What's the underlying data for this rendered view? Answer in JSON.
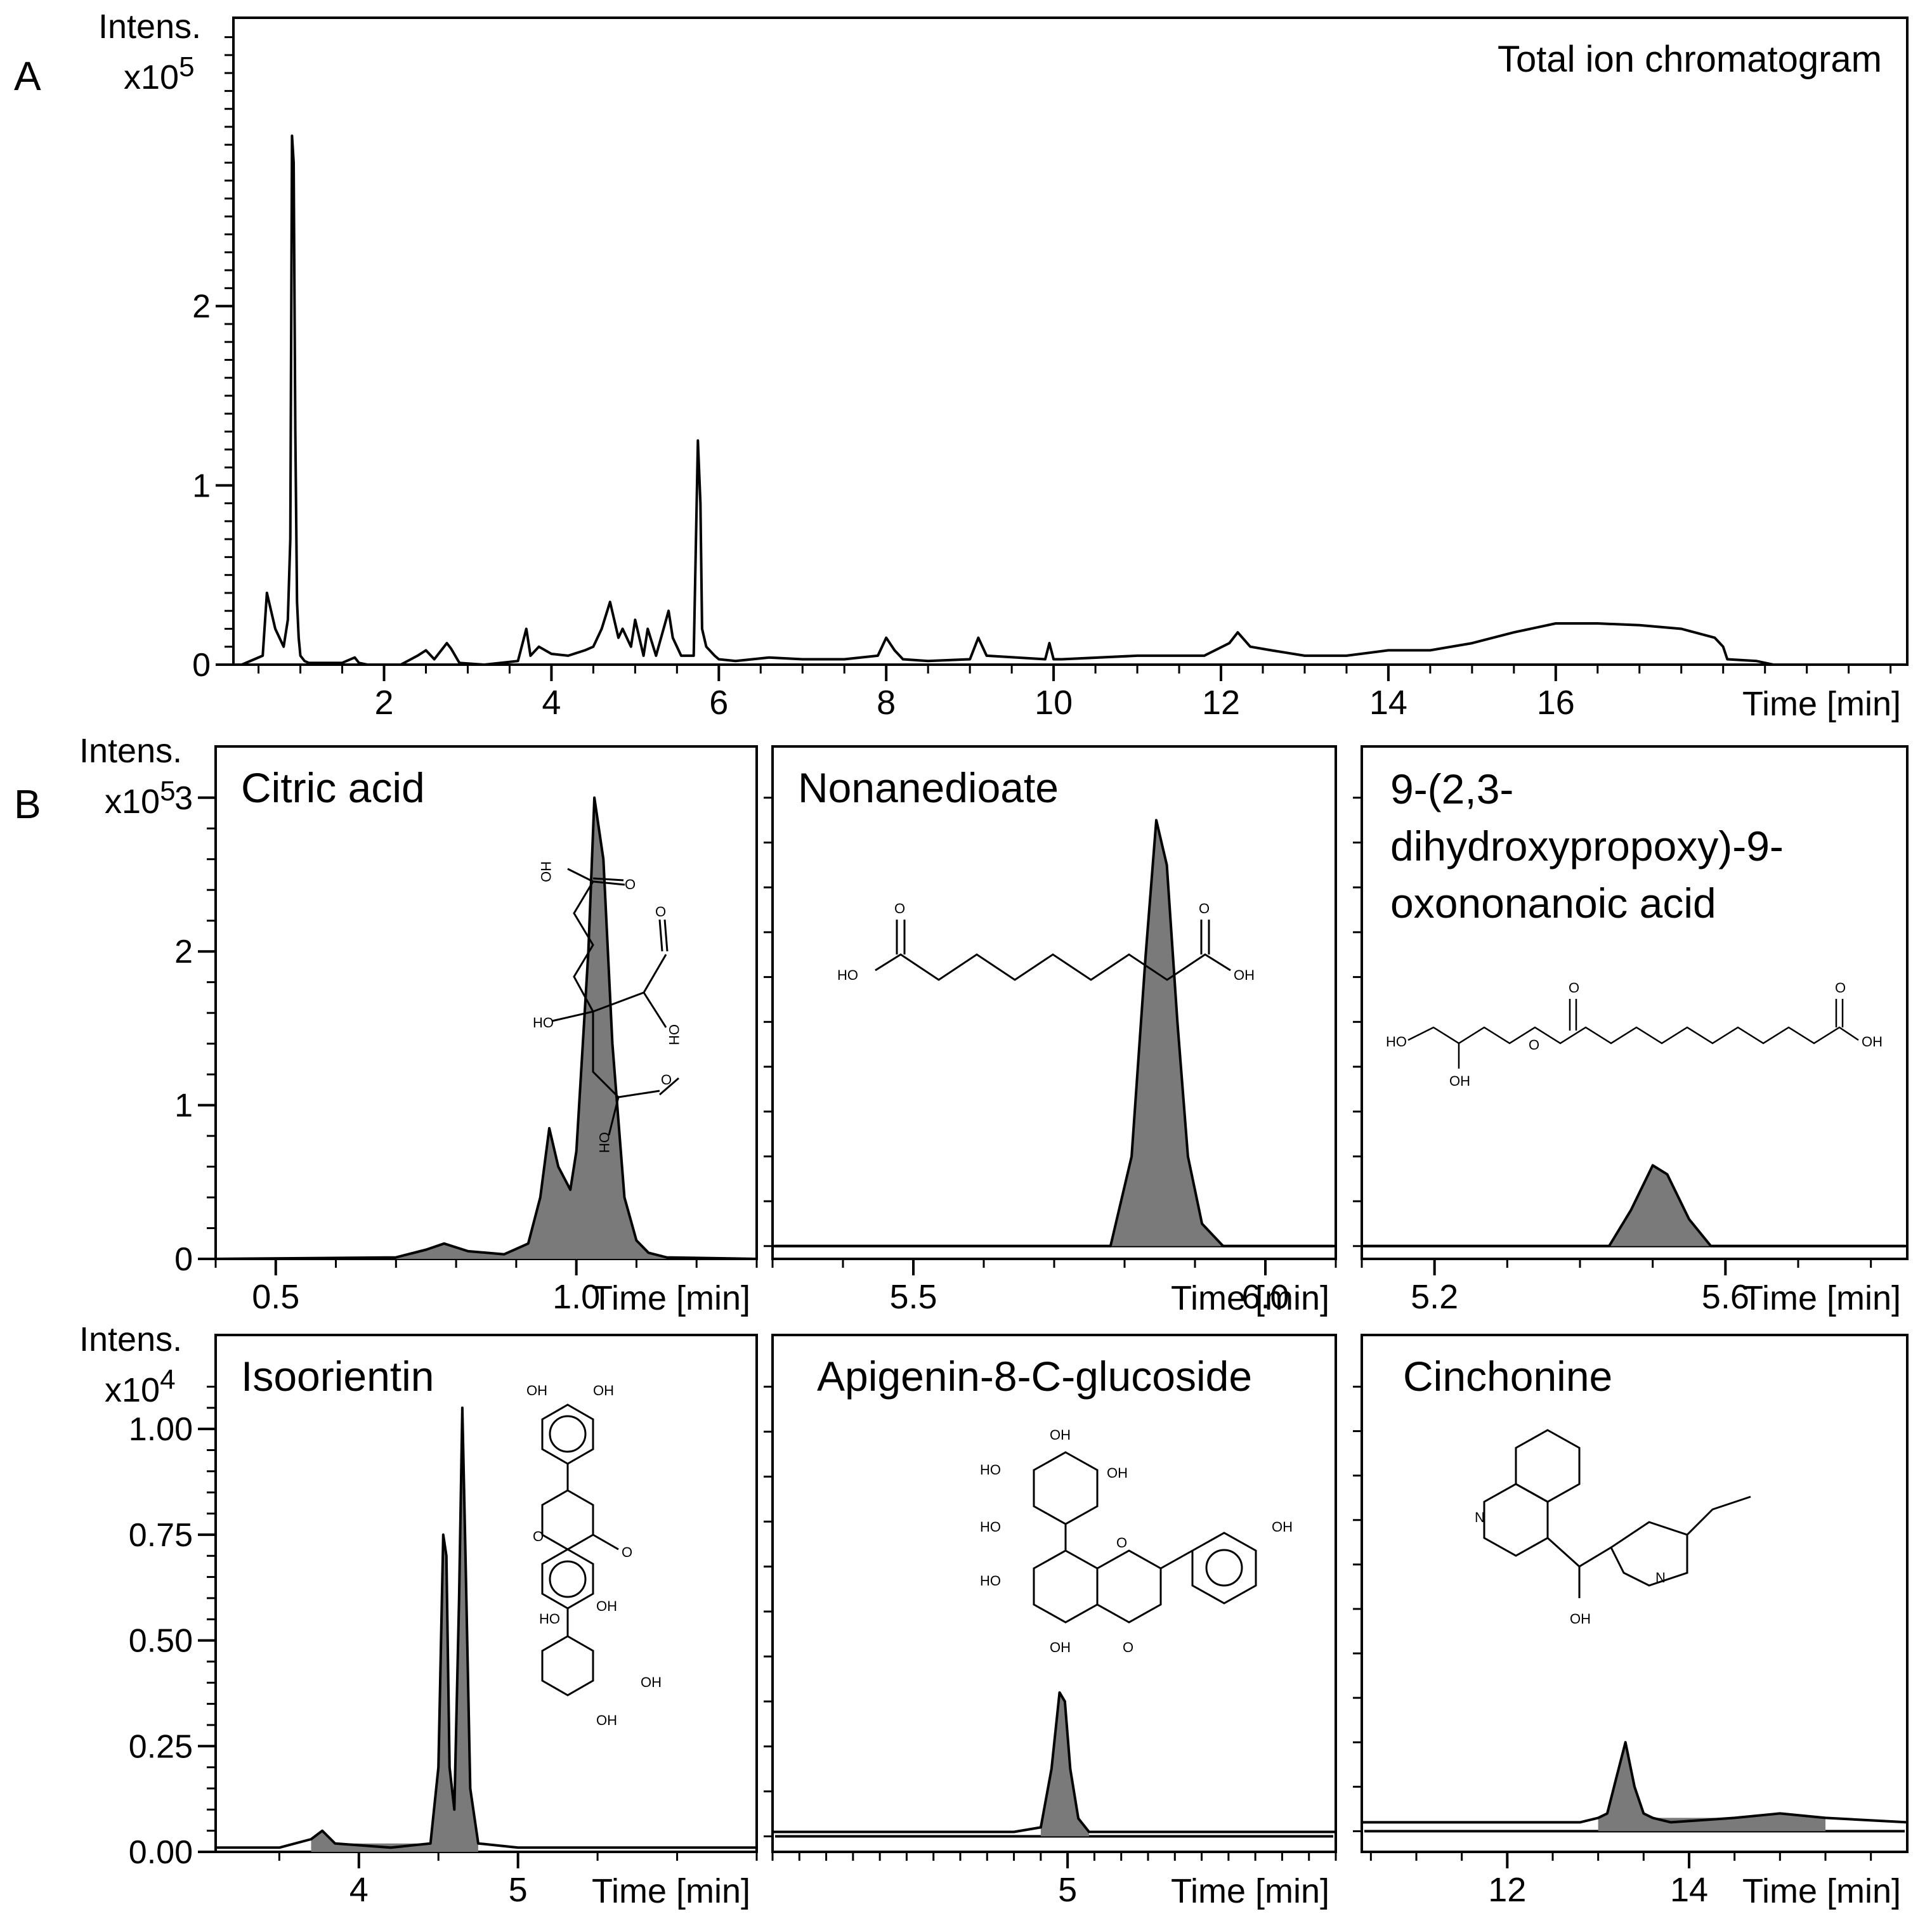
{
  "panel_labels": [
    "A",
    "B"
  ],
  "chart_data": [
    {
      "id": "A",
      "type": "line",
      "title": "Total ion chromatogram",
      "xlabel": "Time [min]",
      "ylabel": "Intens.",
      "yunit": "x10^5",
      "yunit_base": "x10",
      "yunit_exp": "5",
      "xlim": [
        0.2,
        20.2
      ],
      "ylim": [
        0,
        3.5
      ],
      "xticks": [
        "2",
        "4",
        "6",
        "8",
        "10",
        "12",
        "14",
        "16"
      ],
      "xtick_values": [
        2,
        4,
        6,
        8,
        10,
        12,
        14,
        16
      ],
      "yticks": [
        "0",
        "1",
        "2"
      ],
      "ytick_values": [
        0,
        1,
        2
      ],
      "minor_y_step": 0.1,
      "minor_x_step": 0.5,
      "series": [
        {
          "x": [
            0.3,
            0.55,
            0.6,
            0.65,
            0.7,
            0.75,
            0.8,
            0.85,
            0.88,
            0.9,
            0.92,
            0.94,
            0.96,
            0.98,
            1.0,
            1.05,
            1.1,
            1.2,
            1.5,
            1.65,
            1.7,
            1.8,
            2.2,
            2.4,
            2.5,
            2.6,
            2.75,
            2.8,
            2.9,
            3.2,
            3.6,
            3.7,
            3.75,
            3.85,
            4.0,
            4.2,
            4.4,
            4.5,
            4.6,
            4.7,
            4.75,
            4.8,
            4.85,
            4.95,
            5.0,
            5.1,
            5.15,
            5.25,
            5.4,
            5.45,
            5.55,
            5.7,
            5.75,
            5.78,
            5.8,
            5.85,
            5.95,
            6.0,
            6.2,
            6.6,
            7.0,
            7.5,
            7.9,
            8.0,
            8.1,
            8.2,
            8.5,
            9.0,
            9.1,
            9.2,
            9.9,
            9.95,
            10.0,
            10.1,
            11.0,
            11.8,
            12.1,
            12.2,
            12.35,
            12.6,
            13.0,
            13.5,
            14.0,
            14.5,
            15.0,
            15.5,
            16.0,
            16.5,
            17.0,
            17.5,
            17.9,
            18.0,
            18.05,
            18.4,
            18.6,
            20.0
          ],
          "y": [
            0.0,
            0.05,
            0.4,
            0.3,
            0.2,
            0.15,
            0.1,
            0.25,
            0.7,
            2.95,
            2.8,
            1.3,
            0.35,
            0.15,
            0.05,
            0.02,
            0.01,
            0.01,
            0.01,
            0.04,
            0.01,
            0.0,
            0.0,
            0.05,
            0.08,
            0.03,
            0.12,
            0.09,
            0.01,
            0.0,
            0.02,
            0.2,
            0.05,
            0.1,
            0.06,
            0.05,
            0.08,
            0.1,
            0.2,
            0.35,
            0.25,
            0.15,
            0.2,
            0.1,
            0.25,
            0.05,
            0.2,
            0.05,
            0.3,
            0.15,
            0.05,
            0.05,
            1.25,
            0.9,
            0.2,
            0.1,
            0.05,
            0.03,
            0.02,
            0.04,
            0.03,
            0.03,
            0.05,
            0.15,
            0.08,
            0.03,
            0.02,
            0.03,
            0.15,
            0.05,
            0.03,
            0.12,
            0.03,
            0.03,
            0.05,
            0.05,
            0.12,
            0.18,
            0.1,
            0.08,
            0.05,
            0.05,
            0.08,
            0.08,
            0.12,
            0.18,
            0.23,
            0.23,
            0.22,
            0.2,
            0.15,
            0.1,
            0.03,
            0.02,
            0.0,
            0.0
          ]
        }
      ]
    },
    {
      "id": "citric",
      "type": "area",
      "title": "Citric acid",
      "xlabel": "Time [min]",
      "ylabel": "Intens.",
      "yunit": "x10^5",
      "yunit_base": "x10",
      "yunit_exp": "5",
      "xlim": [
        0.4,
        1.3
      ],
      "ylim": [
        0,
        3.0
      ],
      "xticks": [
        "0.5",
        "1.0"
      ],
      "xtick_values": [
        0.5,
        1.0
      ],
      "yticks": [
        "0",
        "1",
        "2",
        "3"
      ],
      "ytick_values": [
        0,
        1,
        2,
        3
      ],
      "series": [
        {
          "x": [
            0.4,
            0.7,
            0.75,
            0.78,
            0.82,
            0.88,
            0.92,
            0.94,
            0.955,
            0.97,
            0.99,
            1.0,
            1.02,
            1.03,
            1.045,
            1.06,
            1.08,
            1.1,
            1.12,
            1.15,
            1.3
          ],
          "y": [
            0.0,
            0.01,
            0.06,
            0.1,
            0.05,
            0.03,
            0.1,
            0.4,
            0.85,
            0.6,
            0.45,
            0.7,
            2.0,
            3.0,
            2.6,
            1.4,
            0.4,
            0.12,
            0.04,
            0.01,
            0.0
          ]
        }
      ]
    },
    {
      "id": "nonanedioate",
      "type": "area",
      "title": "Nonanedioate",
      "xlabel": "Time [min]",
      "xlim": [
        5.3,
        6.1
      ],
      "ylim": [
        0,
        1.0
      ],
      "xticks": [
        "5.5",
        "6.0"
      ],
      "xtick_values": [
        5.5,
        6.0
      ],
      "series": [
        {
          "x": [
            5.3,
            5.78,
            5.81,
            5.83,
            5.845,
            5.86,
            5.875,
            5.89,
            5.91,
            5.94,
            6.1
          ],
          "y": [
            0.0,
            0.0,
            0.2,
            0.65,
            0.95,
            0.85,
            0.5,
            0.2,
            0.05,
            0.0,
            0.0
          ]
        }
      ]
    },
    {
      "id": "oxononanoic",
      "type": "area",
      "title": "9-(2,3-dihydroxypropoxy)-9-oxononanoic acid",
      "title_lines": [
        "9-(2,3-",
        "dihydroxypropoxy)-9-",
        "oxononanoic acid"
      ],
      "xlabel": "Time [min]",
      "xlim": [
        5.1,
        5.85
      ],
      "ylim": [
        0,
        1.0
      ],
      "xticks": [
        "5.2",
        "5.6"
      ],
      "xtick_values": [
        5.2,
        5.6
      ],
      "series": [
        {
          "x": [
            5.1,
            5.44,
            5.47,
            5.5,
            5.52,
            5.55,
            5.58,
            5.85
          ],
          "y": [
            0.0,
            0.0,
            0.08,
            0.18,
            0.16,
            0.06,
            0.0,
            0.0
          ]
        }
      ]
    },
    {
      "id": "isoorientin",
      "type": "area",
      "title": "Isoorientin",
      "xlabel": "Time [min]",
      "ylabel": "Intens.",
      "yunit": "x10^4",
      "yunit_base": "x10",
      "yunit_exp": "4",
      "xlim": [
        3.1,
        6.5
      ],
      "ylim": [
        0,
        1.1
      ],
      "xticks": [
        "4",
        "5"
      ],
      "xtick_values": [
        4,
        5
      ],
      "yticks": [
        "0.00",
        "0.25",
        "0.50",
        "0.75",
        "1.00"
      ],
      "ytick_values": [
        0,
        0.25,
        0.5,
        0.75,
        1.0
      ],
      "series": [
        {
          "x": [
            3.1,
            3.5,
            3.7,
            3.77,
            3.85,
            4.2,
            4.45,
            4.5,
            4.53,
            4.55,
            4.57,
            4.6,
            4.63,
            4.65,
            4.67,
            4.7,
            4.75,
            5.0,
            6.5
          ],
          "y": [
            0.01,
            0.01,
            0.03,
            0.05,
            0.02,
            0.01,
            0.02,
            0.2,
            0.75,
            0.7,
            0.2,
            0.1,
            0.6,
            1.05,
            0.7,
            0.15,
            0.02,
            0.01,
            0.01
          ]
        }
      ]
    },
    {
      "id": "apigenin",
      "type": "area",
      "title": "Apigenin-8-C-glucoside",
      "xlabel": "Time [min]",
      "xlim": [
        3.9,
        6.0
      ],
      "ylim": [
        0,
        1.0
      ],
      "xticks": [
        "5"
      ],
      "xtick_values": [
        5
      ],
      "series": [
        {
          "x": [
            3.9,
            4.8,
            4.9,
            4.94,
            4.97,
            4.99,
            5.01,
            5.04,
            5.08,
            5.2,
            6.0
          ],
          "y": [
            0.01,
            0.01,
            0.02,
            0.15,
            0.32,
            0.3,
            0.15,
            0.04,
            0.01,
            0.01,
            0.01
          ]
        }
      ]
    },
    {
      "id": "cinchonine",
      "type": "area",
      "title": "Cinchonine",
      "xlabel": "Time [min]",
      "xlim": [
        10.4,
        16.4
      ],
      "ylim": [
        0,
        1.0
      ],
      "xticks": [
        "12",
        "14"
      ],
      "xtick_values": [
        12,
        14
      ],
      "series": [
        {
          "x": [
            10.4,
            12.8,
            13.0,
            13.1,
            13.2,
            13.3,
            13.4,
            13.5,
            13.6,
            13.8,
            14.5,
            15.0,
            15.5,
            16.4
          ],
          "y": [
            0.02,
            0.02,
            0.03,
            0.04,
            0.12,
            0.2,
            0.1,
            0.04,
            0.03,
            0.02,
            0.03,
            0.04,
            0.03,
            0.02
          ]
        }
      ]
    }
  ],
  "structures": {
    "labels": [
      "HO",
      "OH",
      "O",
      "N"
    ]
  }
}
